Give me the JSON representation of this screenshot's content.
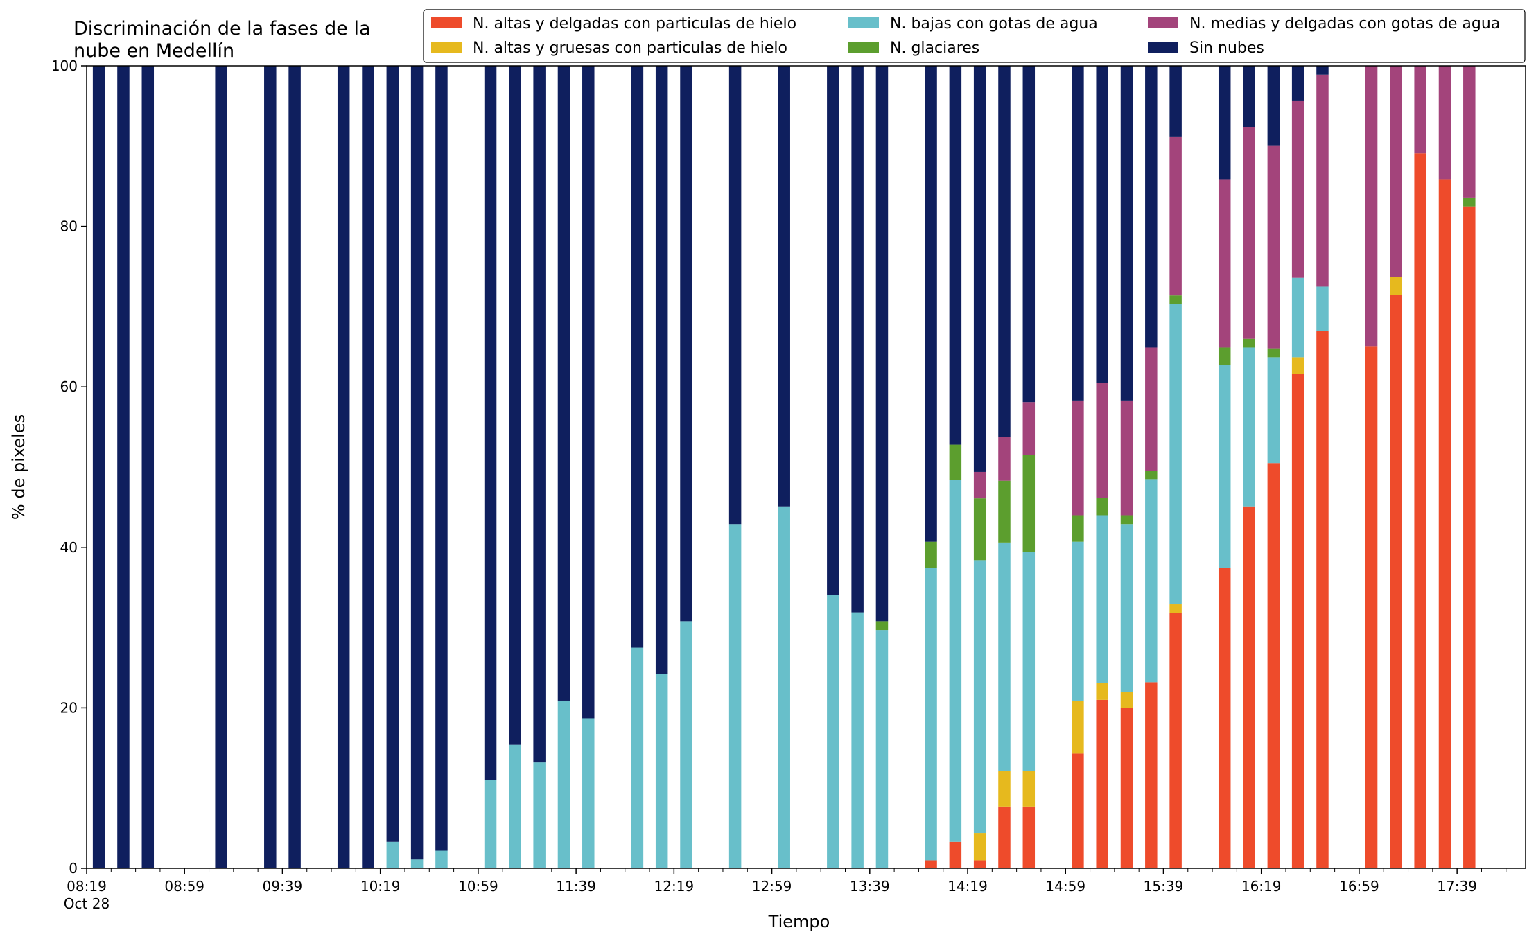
{
  "chart_data": {
    "type": "bar",
    "stacked": true,
    "title": "Discriminación de la fases de la nube en Medellín",
    "title_lines": [
      "Discriminación de la fases de la",
      "nube en Medellín"
    ],
    "xlabel": "Tiempo",
    "ylabel": "% de pixeles",
    "ylim": [
      0,
      100
    ],
    "yticks": [
      0,
      20,
      40,
      60,
      80,
      100
    ],
    "x_date_label": "Oct 28",
    "xticks": [
      "08:19",
      "08:59",
      "09:39",
      "10:19",
      "10:59",
      "11:39",
      "12:19",
      "12:59",
      "13:39",
      "14:19",
      "14:59",
      "15:39",
      "16:19",
      "16:59",
      "17:39"
    ],
    "x_range_minutes": [
      "08:19",
      "18:07"
    ],
    "grid": false,
    "legend_position": "top-right",
    "legend": {
      "columns": [
        [
          0,
          1
        ],
        [
          2,
          3
        ],
        [
          4,
          5
        ]
      ]
    },
    "times": [
      "08:24",
      "08:34",
      "08:44",
      "09:14",
      "09:34",
      "09:44",
      "10:04",
      "10:14",
      "10:24",
      "10:34",
      "10:44",
      "11:04",
      "11:14",
      "11:24",
      "11:34",
      "11:44",
      "12:04",
      "12:14",
      "12:24",
      "12:44",
      "13:04",
      "13:24",
      "13:34",
      "13:44",
      "14:04",
      "14:14",
      "14:24",
      "14:34",
      "14:44",
      "15:04",
      "15:14",
      "15:24",
      "15:34",
      "15:44",
      "16:04",
      "16:14",
      "16:24",
      "16:34",
      "16:44",
      "17:04",
      "17:14",
      "17:24",
      "17:34",
      "17:44"
    ],
    "series": [
      {
        "name": "N. altas y delgadas con particulas de hielo",
        "color": "#ee4b2b",
        "values": [
          0,
          0,
          0,
          0,
          0,
          0,
          0,
          0,
          0,
          0,
          0,
          0,
          0,
          0,
          0,
          0,
          0,
          0,
          0,
          0,
          0,
          0,
          0,
          0,
          1.0,
          3.3,
          1.0,
          7.7,
          7.7,
          14.3,
          21.0,
          20.0,
          23.2,
          31.8,
          37.4,
          45.1,
          50.5,
          61.6,
          67.0,
          65.0,
          71.5,
          89.1,
          85.8,
          82.5
        ]
      },
      {
        "name": "N. altas y gruesas con particulas de hielo",
        "color": "#e6b91e",
        "values": [
          0,
          0,
          0,
          0,
          0,
          0,
          0,
          0,
          0,
          0,
          0,
          0,
          0,
          0,
          0,
          0,
          0,
          0,
          0,
          0,
          0,
          0,
          0,
          0,
          0,
          0,
          3.4,
          4.4,
          4.4,
          6.6,
          2.1,
          2.0,
          0,
          1.1,
          0,
          0,
          0,
          2.1,
          0,
          0,
          2.2,
          0,
          0,
          0
        ]
      },
      {
        "name": "N. bajas con gotas de agua",
        "color": "#68bfca",
        "values": [
          0,
          0,
          0,
          0,
          0,
          0,
          0,
          0,
          3.3,
          1.1,
          2.2,
          11.0,
          15.4,
          13.2,
          20.9,
          18.7,
          27.5,
          24.2,
          30.8,
          42.9,
          45.1,
          34.1,
          31.9,
          29.7,
          36.4,
          45.1,
          34.0,
          28.5,
          27.3,
          19.8,
          20.9,
          20.9,
          25.3,
          37.4,
          25.3,
          19.8,
          13.2,
          9.9,
          5.5,
          0,
          0,
          0,
          0,
          0
        ]
      },
      {
        "name": "N. glaciares",
        "color": "#5c9e2e",
        "values": [
          0,
          0,
          0,
          0,
          0,
          0,
          0,
          0,
          0,
          0,
          0,
          0,
          0,
          0,
          0,
          0,
          0,
          0,
          0,
          0,
          0,
          0,
          0,
          1.1,
          3.3,
          4.4,
          7.7,
          7.7,
          12.1,
          3.3,
          2.2,
          1.1,
          1.0,
          1.1,
          2.2,
          1.1,
          1.1,
          0,
          0,
          0,
          0,
          0,
          0,
          1.1
        ]
      },
      {
        "name": "N. medias y delgadas con gotas de agua",
        "color": "#a3447b",
        "values": [
          0,
          0,
          0,
          0,
          0,
          0,
          0,
          0,
          0,
          0,
          0,
          0,
          0,
          0,
          0,
          0,
          0,
          0,
          0,
          0,
          0,
          0,
          0,
          0,
          0,
          0,
          3.3,
          5.5,
          6.6,
          14.3,
          14.3,
          14.3,
          15.4,
          19.8,
          20.9,
          26.4,
          25.3,
          22.0,
          26.4,
          35.0,
          26.3,
          10.9,
          14.2,
          16.4
        ]
      },
      {
        "name": "Sin nubes",
        "color": "#0f1f5e",
        "values": [
          100,
          100,
          100,
          100,
          100,
          100,
          100,
          100,
          96.7,
          98.9,
          97.8,
          89.0,
          84.6,
          86.8,
          79.1,
          81.3,
          72.5,
          75.8,
          69.2,
          57.1,
          54.9,
          65.9,
          68.1,
          69.2,
          59.3,
          47.2,
          50.6,
          46.2,
          41.9,
          41.7,
          39.5,
          41.7,
          35.1,
          8.8,
          14.2,
          7.6,
          9.9,
          4.4,
          1.1,
          0,
          0,
          0,
          0,
          0
        ]
      }
    ]
  }
}
